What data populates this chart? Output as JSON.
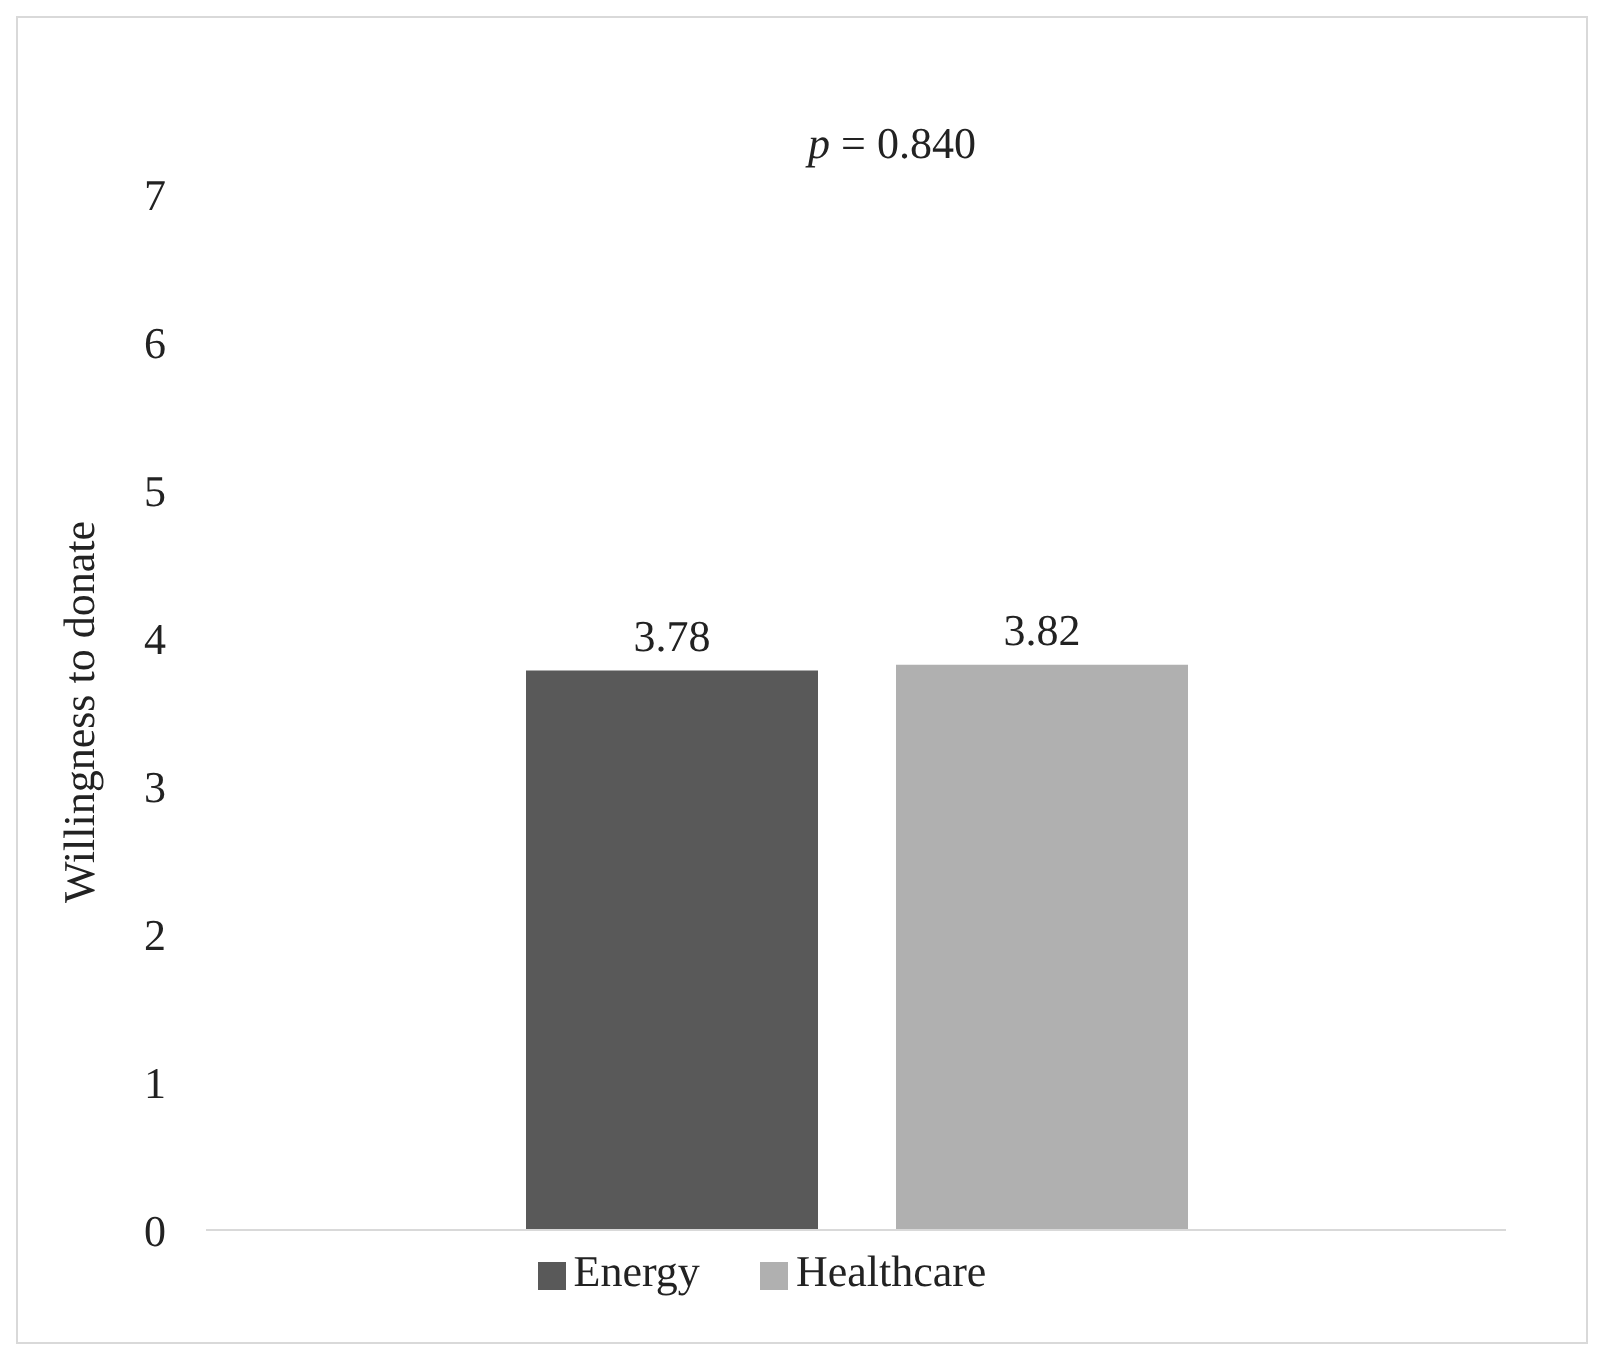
{
  "chart_data": {
    "type": "bar",
    "ylabel": "Willingness to donate",
    "annotations": [
      "p = 0.840"
    ],
    "categories": [
      null
    ],
    "series": [
      {
        "name": "Energy",
        "color": "#595959",
        "values": [
          3.78
        ]
      },
      {
        "name": "Healthcare",
        "color": "#b0b0b0",
        "values": [
          3.82
        ]
      }
    ],
    "ylim": [
      0,
      7
    ],
    "yticks": [
      0,
      1,
      2,
      3,
      4,
      5,
      6,
      7
    ],
    "grid": false,
    "legend": "bottom",
    "data_labels": true
  }
}
